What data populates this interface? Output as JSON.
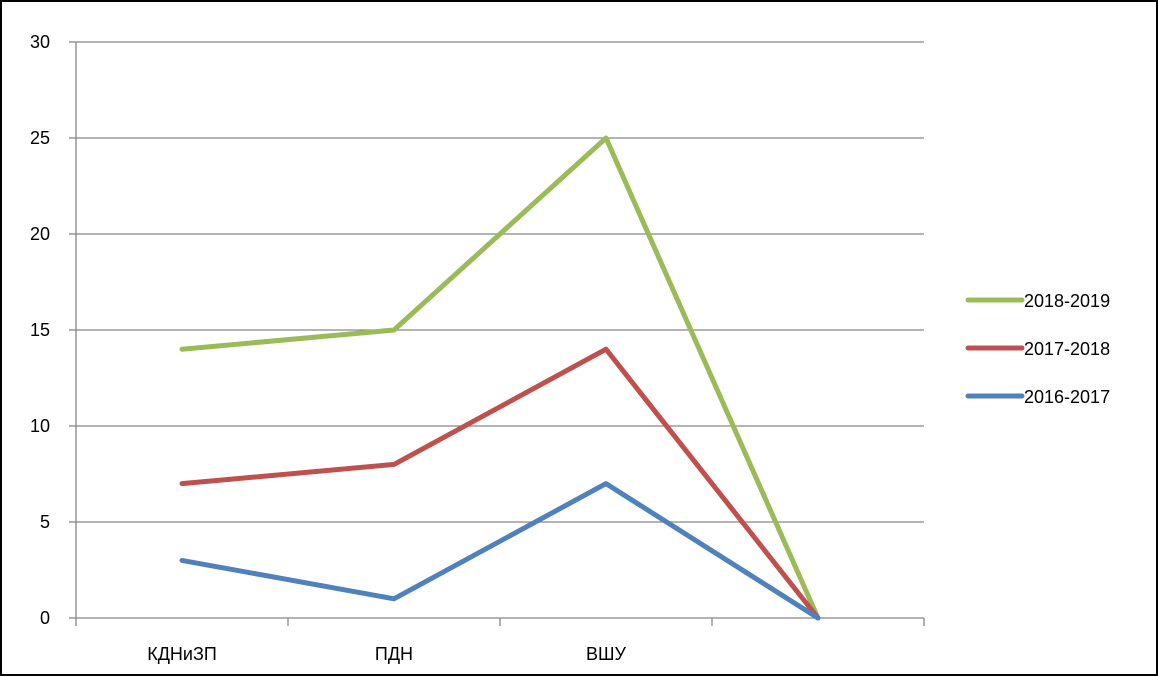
{
  "chart_data": {
    "type": "line",
    "categories": [
      "КДНиЗП",
      "ПДН",
      "ВШУ",
      ""
    ],
    "series": [
      {
        "name": "2016-2017",
        "values": [
          3,
          1,
          7,
          0
        ],
        "color": "#4F81BD"
      },
      {
        "name": "2017-2018",
        "values": [
          7,
          8,
          14,
          0
        ],
        "color": "#C0504D"
      },
      {
        "name": "2018-2019",
        "values": [
          14,
          15,
          25,
          0
        ],
        "color": "#9BBB59"
      }
    ],
    "legend_order": [
      "2018-2019",
      "2017-2018",
      "2016-2017"
    ],
    "ylim": [
      0,
      30
    ],
    "y_ticks": [
      0,
      5,
      10,
      15,
      20,
      25,
      30
    ],
    "grid": true,
    "legend_position": "right",
    "gridline_color": "#868686",
    "axis_color": "#868686"
  }
}
